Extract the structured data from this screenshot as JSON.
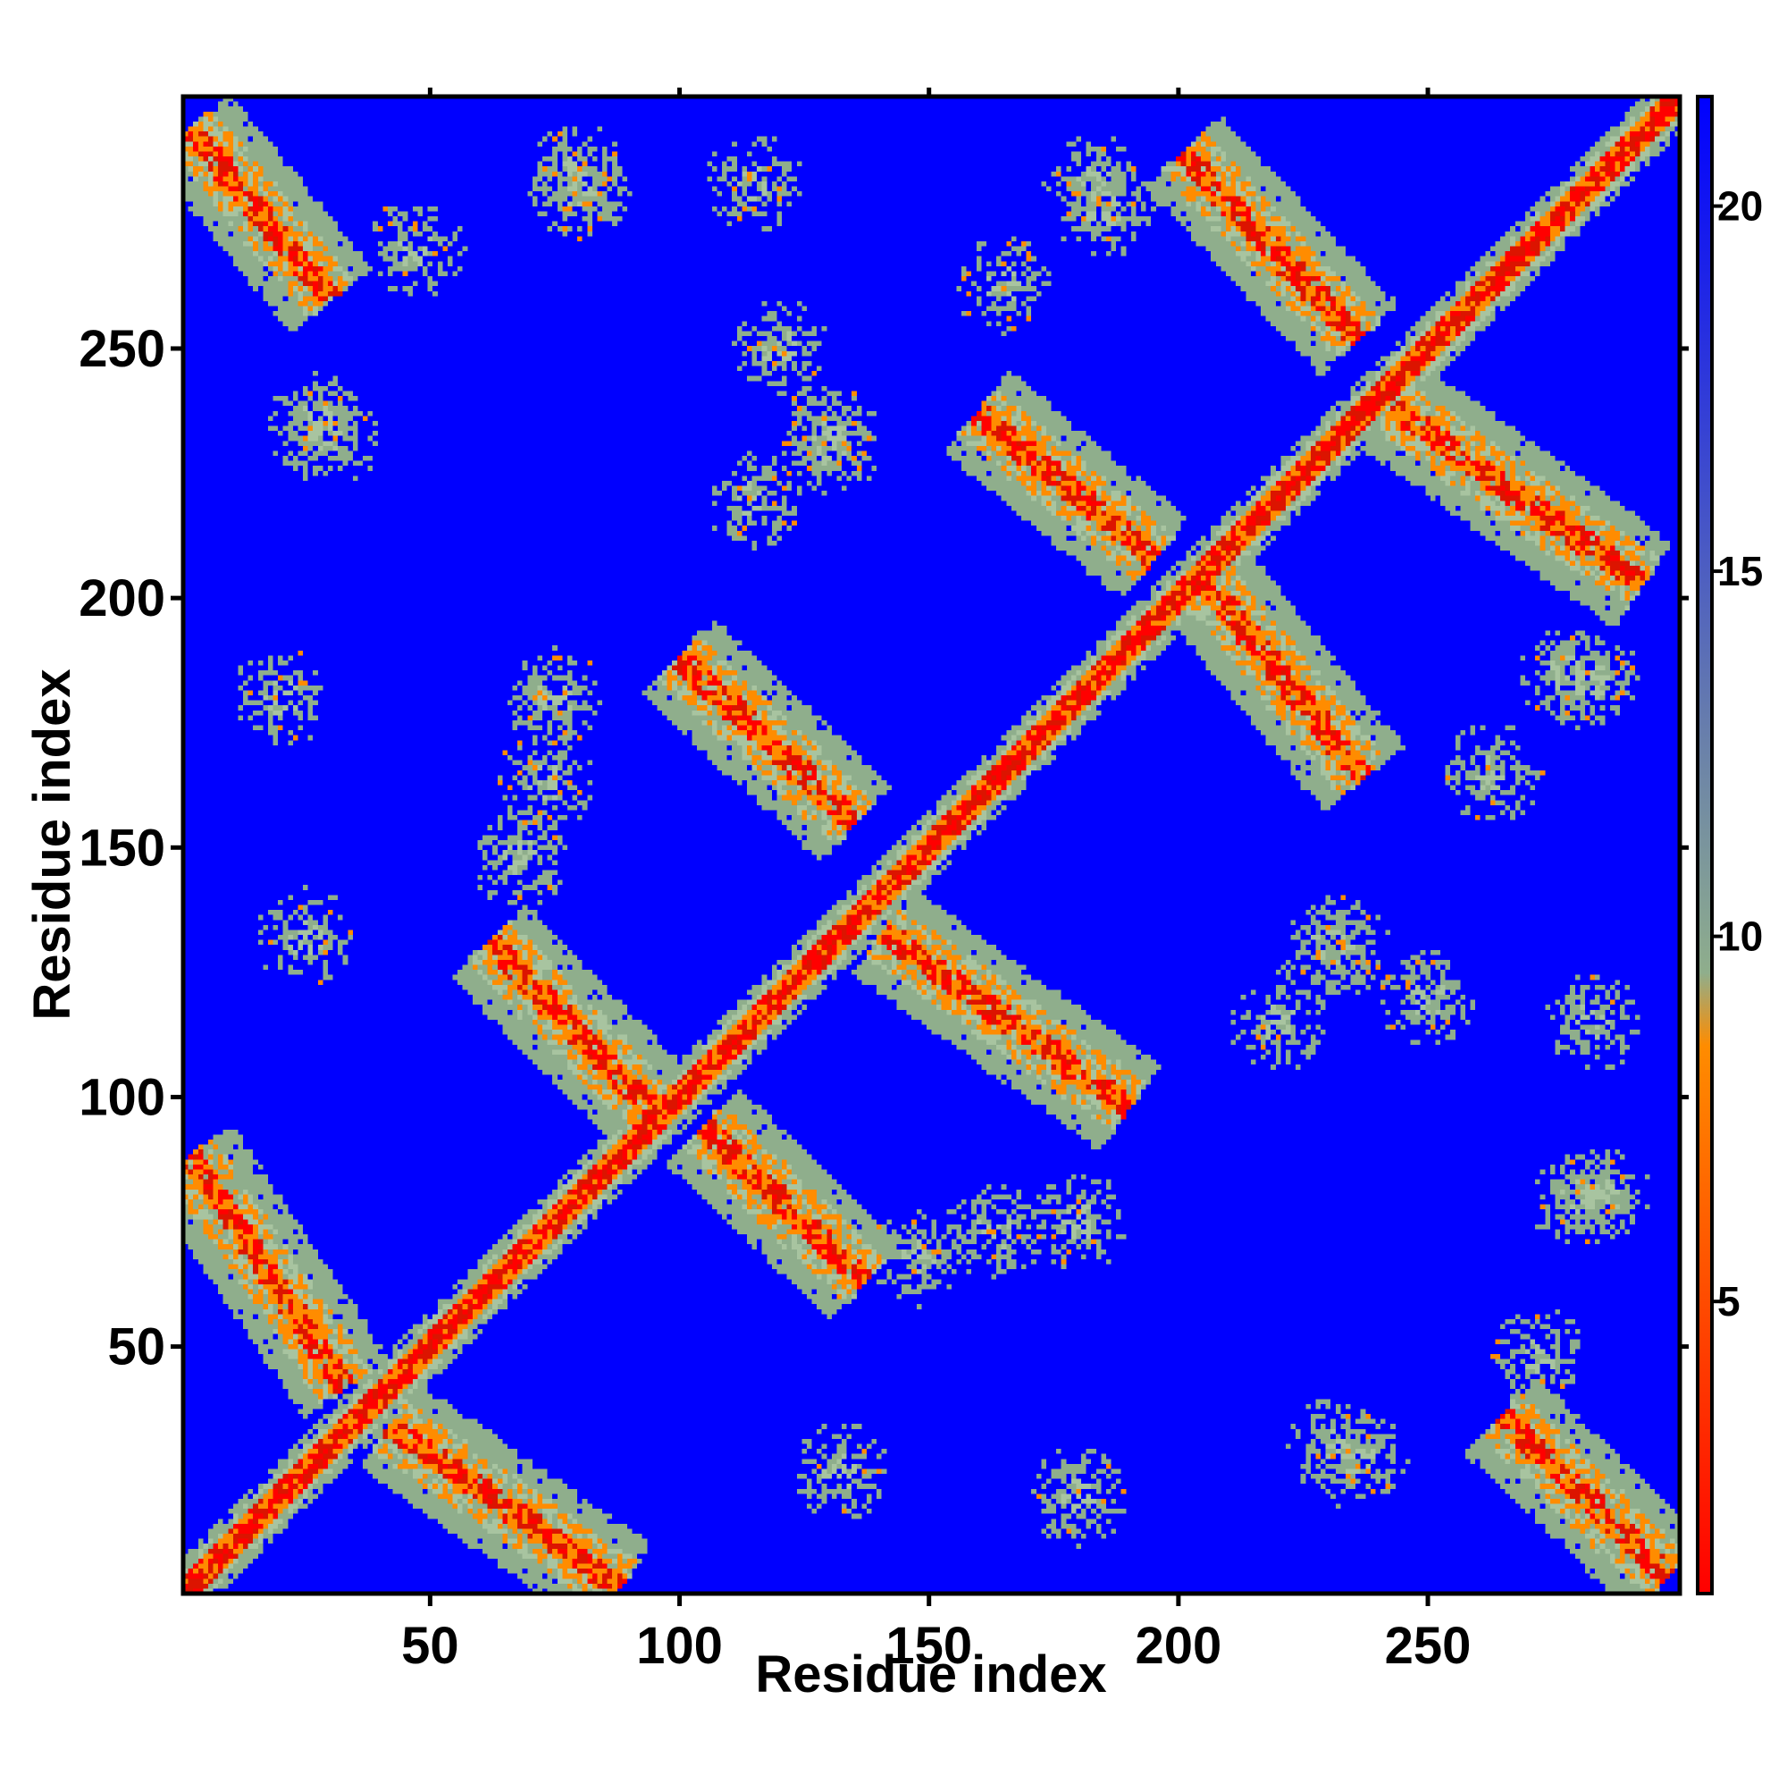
{
  "chart_data": {
    "type": "heatmap",
    "title": "",
    "xlabel": "Residue index",
    "ylabel": "Residue index",
    "n_residues": 300,
    "xlim": [
      1,
      300
    ],
    "ylim": [
      1,
      300
    ],
    "x_ticks": [
      50,
      100,
      150,
      200,
      250
    ],
    "x_tick_labels": [
      "50",
      "100",
      "150",
      "200",
      "250"
    ],
    "y_ticks": [
      50,
      100,
      150,
      200,
      250
    ],
    "y_tick_labels": [
      "50",
      "100",
      "150",
      "200",
      "250"
    ],
    "colorbar": {
      "range": [
        1,
        21.5
      ],
      "ticks": [
        5,
        10,
        15,
        20
      ],
      "tick_labels": [
        "5",
        "10",
        "15",
        "20"
      ],
      "colors": [
        "#ff0000",
        "#ff8c00",
        "#8fae8c",
        "#0000ff"
      ],
      "stops": [
        1,
        8.5,
        9.5,
        21.5
      ]
    },
    "background_value": 21.5,
    "colors": {
      "background": "#0000ff",
      "near_contact": "#ff0000",
      "mid_contact": "#ff8c00",
      "far_contact": "#8fae8c"
    },
    "grid": false,
    "legend": "colorbar-right",
    "features": [
      {
        "kind": "diagonal",
        "from": [
          1,
          1
        ],
        "to": [
          300,
          300
        ]
      },
      {
        "kind": "antiparallel-band",
        "from": [
          2,
          88
        ],
        "to": [
          33,
          42
        ]
      },
      {
        "kind": "antiparallel-band",
        "from": [
          42,
          34
        ],
        "to": [
          88,
          2
        ]
      },
      {
        "kind": "antiparallel-band",
        "from": [
          62,
          131
        ],
        "to": [
          95,
          97
        ]
      },
      {
        "kind": "antiparallel-band",
        "from": [
          105,
          94
        ],
        "to": [
          137,
          63
        ]
      },
      {
        "kind": "antiparallel-band",
        "from": [
          100,
          188
        ],
        "to": [
          135,
          155
        ]
      },
      {
        "kind": "antiparallel-band",
        "from": [
          141,
          133
        ],
        "to": [
          190,
          98
        ]
      },
      {
        "kind": "antiparallel-band",
        "from": [
          160,
          237
        ],
        "to": [
          195,
          208
        ]
      },
      {
        "kind": "antiparallel-band",
        "from": [
          205,
          204
        ],
        "to": [
          237,
          164
        ]
      },
      {
        "kind": "antiparallel-band",
        "from": [
          201,
          289
        ],
        "to": [
          236,
          252
        ]
      },
      {
        "kind": "antiparallel-band",
        "from": [
          243,
          238
        ],
        "to": [
          293,
          203
        ]
      },
      {
        "kind": "antiparallel-band",
        "from": [
          2,
          294
        ],
        "to": [
          30,
          260
        ]
      },
      {
        "kind": "antiparallel-band",
        "from": [
          265,
          36
        ],
        "to": [
          298,
          4
        ]
      },
      {
        "kind": "patch",
        "at": [
          27,
          235
        ]
      },
      {
        "kind": "patch",
        "at": [
          236,
          27
        ]
      },
      {
        "kind": "patch",
        "at": [
          47,
          270
        ]
      },
      {
        "kind": "patch",
        "at": [
          272,
          48
        ]
      },
      {
        "kind": "patch",
        "at": [
          80,
          281
        ]
      },
      {
        "kind": "patch",
        "at": [
          280,
          80
        ]
      },
      {
        "kind": "patch",
        "at": [
          115,
          283
        ]
      },
      {
        "kind": "patch",
        "at": [
          283,
          115
        ]
      },
      {
        "kind": "patch",
        "at": [
          130,
          233
        ]
      },
      {
        "kind": "patch",
        "at": [
          233,
          130
        ]
      },
      {
        "kind": "patch",
        "at": [
          115,
          220
        ]
      },
      {
        "kind": "patch",
        "at": [
          220,
          115
        ]
      },
      {
        "kind": "patch",
        "at": [
          165,
          263
        ]
      },
      {
        "kind": "patch",
        "at": [
          263,
          165
        ]
      },
      {
        "kind": "patch",
        "at": [
          185,
          278
        ]
      },
      {
        "kind": "patch",
        "at": [
          278,
          185
        ]
      },
      {
        "kind": "patch",
        "at": [
          25,
          132
        ]
      },
      {
        "kind": "patch",
        "at": [
          132,
          25
        ]
      },
      {
        "kind": "patch",
        "at": [
          20,
          180
        ]
      },
      {
        "kind": "patch",
        "at": [
          180,
          20
        ]
      },
      {
        "kind": "patch",
        "at": [
          68,
          148
        ]
      },
      {
        "kind": "patch",
        "at": [
          148,
          68
        ]
      },
      {
        "kind": "patch",
        "at": [
          75,
          180
        ]
      },
      {
        "kind": "patch",
        "at": [
          180,
          75
        ]
      },
      {
        "kind": "patch",
        "at": [
          230,
          130
        ]
      },
      {
        "kind": "patch",
        "at": [
          130,
          230
        ]
      },
      {
        "kind": "patch",
        "at": [
          250,
          120
        ]
      },
      {
        "kind": "patch",
        "at": [
          120,
          250
        ]
      },
      {
        "kind": "patch",
        "at": [
          283,
          183
        ]
      },
      {
        "kind": "patch",
        "at": [
          183,
          283
        ]
      },
      {
        "kind": "patch",
        "at": [
          232,
          30
        ]
      },
      {
        "kind": "patch",
        "at": [
          30,
          232
        ]
      },
      {
        "kind": "patch",
        "at": [
          163,
          73
        ]
      },
      {
        "kind": "patch",
        "at": [
          73,
          163
        ]
      },
      {
        "kind": "patch",
        "at": [
          285,
          80
        ]
      },
      {
        "kind": "patch",
        "at": [
          80,
          285
        ]
      }
    ]
  }
}
